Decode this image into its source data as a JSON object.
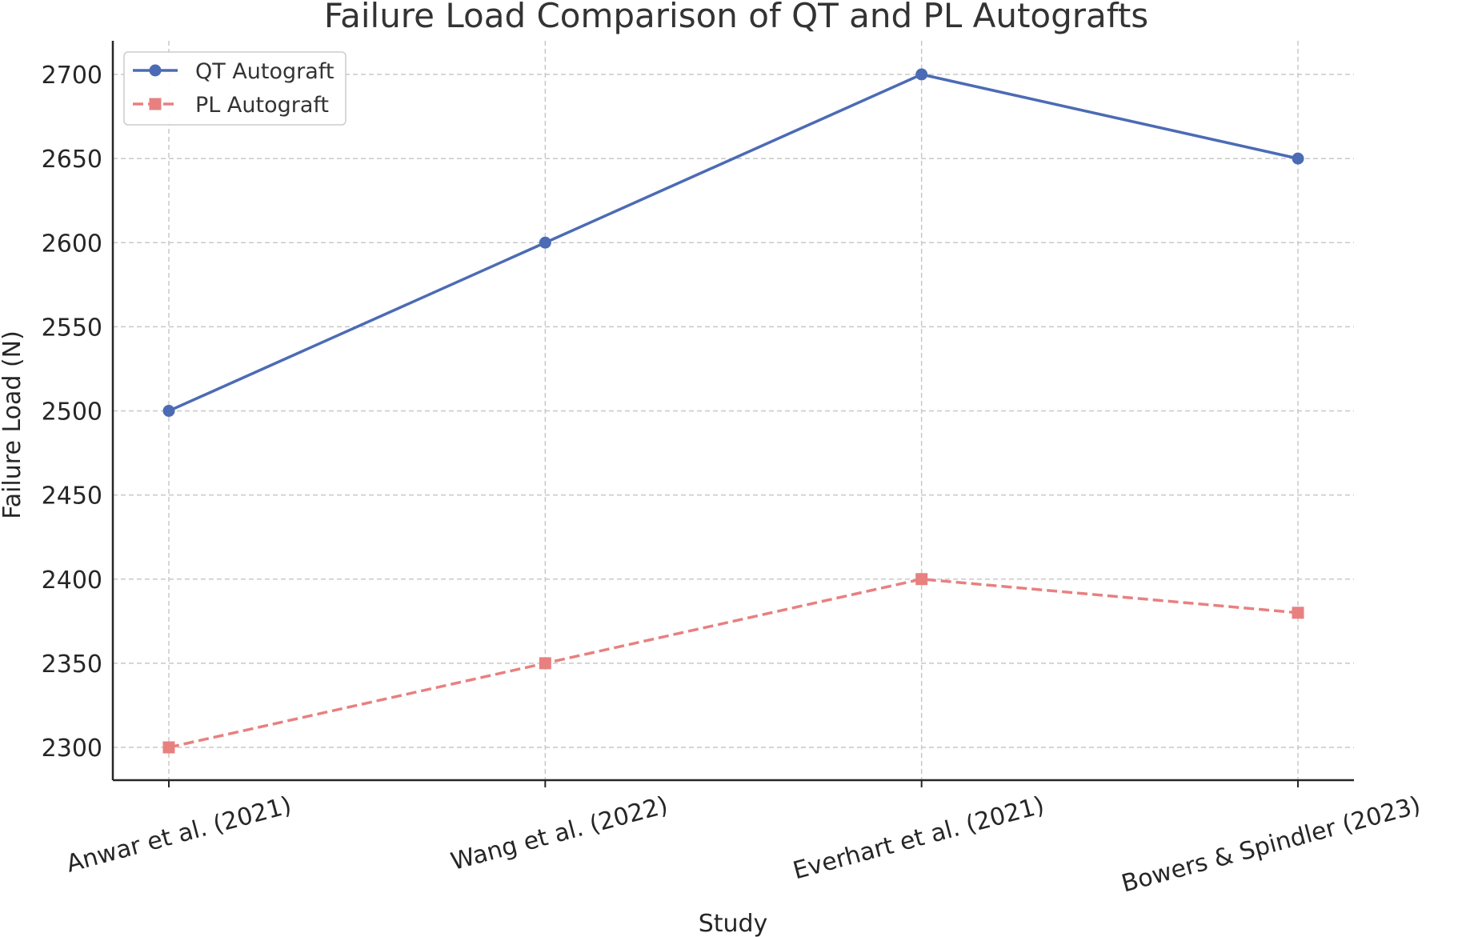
{
  "chart_data": {
    "type": "line",
    "title": "Failure Load Comparison of QT and PL Autografts",
    "xlabel": "Study",
    "ylabel": "Failure Load (N)",
    "categories": [
      "Anwar et al. (2021)",
      "Wang et al. (2022)",
      "Everhart et al. (2021)",
      "Bowers & Spindler (2023)"
    ],
    "ylim": [
      2280,
      2720
    ],
    "yticks": [
      2300,
      2350,
      2400,
      2450,
      2500,
      2550,
      2600,
      2650,
      2700
    ],
    "grid": true,
    "legend_position": "top-left",
    "series": [
      {
        "name": "QT Autograft",
        "values": [
          2500,
          2600,
          2700,
          2650
        ],
        "color": "#4c6bb5",
        "linestyle": "solid",
        "marker": "circle"
      },
      {
        "name": "PL Autograft",
        "values": [
          2300,
          2350,
          2400,
          2380
        ],
        "color": "#e88080",
        "linestyle": "dashed",
        "marker": "square"
      }
    ]
  }
}
